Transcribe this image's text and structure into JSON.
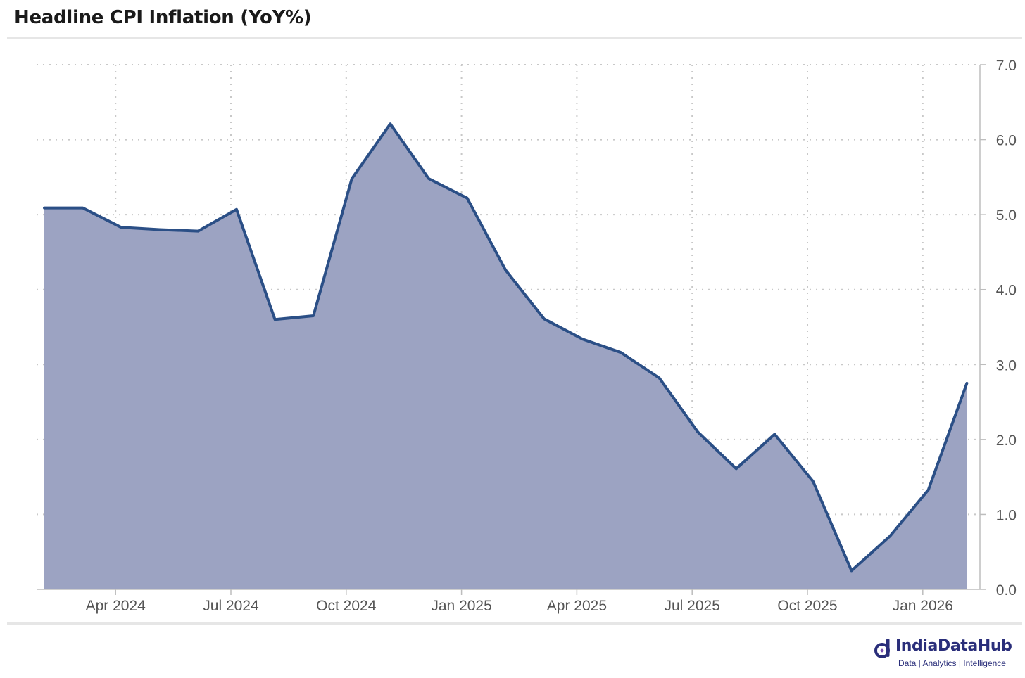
{
  "title": "Headline CPI Inflation (YoY%)",
  "brand": {
    "name": "IndiaDataHub",
    "tagline": "Data | Analytics | Intelligence",
    "color": "#2a2e7a"
  },
  "colors": {
    "line": "#2b4f86",
    "area": "#9ca3c2",
    "grid": "#c8c8c8"
  },
  "chart_data": {
    "type": "area",
    "title": "Headline CPI Inflation (YoY%)",
    "xlabel": "",
    "ylabel": "",
    "ylim": [
      0,
      7
    ],
    "yticks": [
      "0.0",
      "1.0",
      "2.0",
      "3.0",
      "4.0",
      "5.0",
      "6.0",
      "7.0"
    ],
    "xticks": [
      {
        "label": "Apr 2024",
        "x": "2024-04"
      },
      {
        "label": "Jul 2024",
        "x": "2024-07"
      },
      {
        "label": "Oct 2024",
        "x": "2024-10"
      },
      {
        "label": "Jan 2025",
        "x": "2025-01"
      },
      {
        "label": "Apr 2025",
        "x": "2025-04"
      },
      {
        "label": "Jul 2025",
        "x": "2025-07"
      },
      {
        "label": "Oct 2025",
        "x": "2025-10"
      },
      {
        "label": "Jan 2026",
        "x": "2026-01"
      }
    ],
    "grid": true,
    "y_axis_position": "right",
    "x": [
      "2024-02",
      "2024-03",
      "2024-04",
      "2024-05",
      "2024-06",
      "2024-07",
      "2024-08",
      "2024-09",
      "2024-10",
      "2024-11",
      "2024-12",
      "2025-01",
      "2025-02",
      "2025-03",
      "2025-04",
      "2025-05",
      "2025-06",
      "2025-07",
      "2025-08",
      "2025-09",
      "2025-10",
      "2025-11",
      "2025-12",
      "2026-01",
      "2026-02"
    ],
    "values": [
      5.09,
      5.09,
      4.83,
      4.8,
      4.78,
      5.07,
      3.6,
      3.65,
      5.48,
      6.21,
      5.48,
      5.22,
      4.26,
      3.61,
      3.34,
      3.16,
      2.82,
      2.1,
      1.61,
      2.07,
      1.44,
      0.25,
      0.71,
      1.33,
      2.75
    ]
  }
}
